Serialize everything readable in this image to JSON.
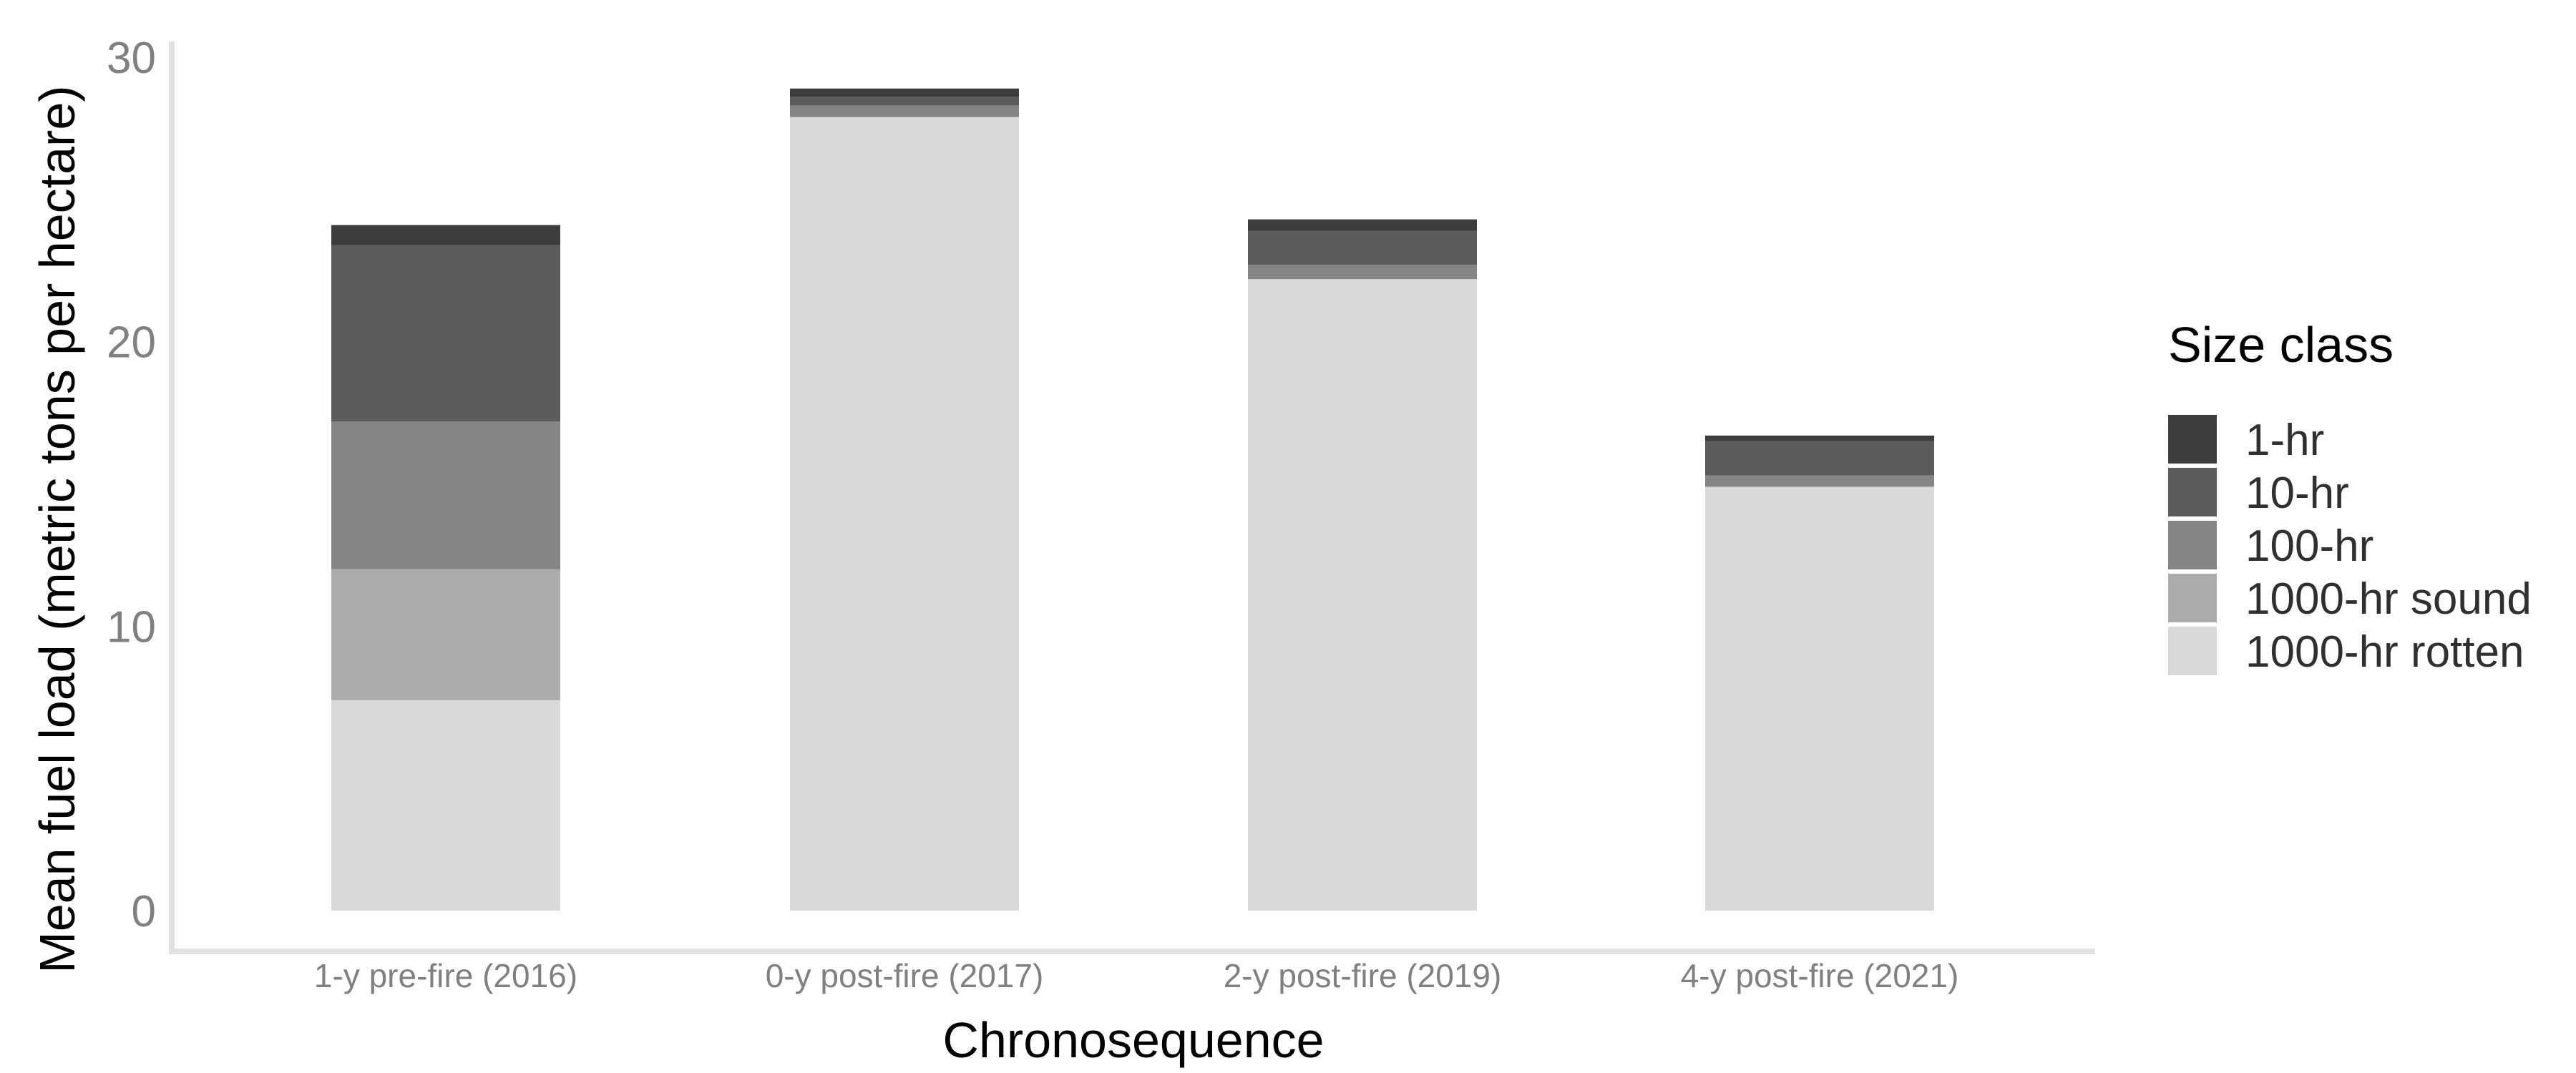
{
  "chart_data": {
    "type": "bar",
    "stacked": true,
    "title": "",
    "xlabel": "Chronosequence",
    "ylabel": "Mean fuel load (metric tons per hectare)",
    "categories": [
      "1-y pre-fire (2016)",
      "0-y post-fire (2017)",
      "2-y post-fire (2019)",
      "4-y post-fire (2021)"
    ],
    "ylim": [
      0,
      30
    ],
    "yticks": [
      0,
      10,
      20,
      30
    ],
    "legend_title": "Size class",
    "legend_position": "right",
    "grid": false,
    "series": [
      {
        "name": "1000-hr rotten",
        "color": "#d9d9d9",
        "values": [
          7.4,
          27.9,
          22.2,
          14.9
        ]
      },
      {
        "name": "1000-hr sound",
        "color": "#ababab",
        "values": [
          4.6,
          0.0,
          0.0,
          0.0
        ]
      },
      {
        "name": "100-hr",
        "color": "#858585",
        "values": [
          5.2,
          0.4,
          0.5,
          0.4
        ]
      },
      {
        "name": "10-hr",
        "color": "#5c5c5c",
        "values": [
          6.2,
          0.3,
          1.2,
          1.2
        ]
      },
      {
        "name": "1-hr",
        "color": "#3d3d3d",
        "values": [
          0.7,
          0.3,
          0.4,
          0.2
        ]
      }
    ],
    "legend_order": [
      "1-hr",
      "10-hr",
      "100-hr",
      "1000-hr sound",
      "1000-hr rotten"
    ]
  }
}
